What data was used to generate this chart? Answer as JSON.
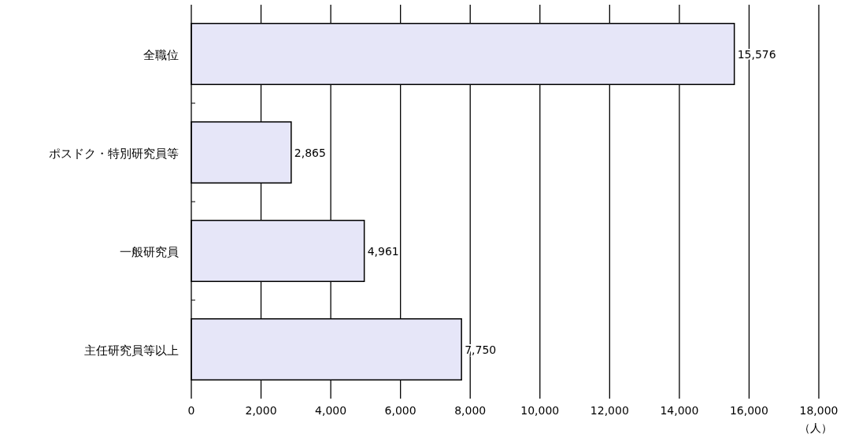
{
  "chart_data": {
    "type": "bar",
    "orientation": "horizontal",
    "categories": [
      "全職位",
      "ポスドク・特別研究員等",
      "一般研究員",
      "主任研究員等以上"
    ],
    "values": [
      15576,
      2865,
      4961,
      7750
    ],
    "value_labels": [
      "15,576",
      "2,865",
      "4,961",
      "7,750"
    ],
    "color": "#e6e6f8",
    "xlim": [
      0,
      18000
    ],
    "xticks": [
      0,
      {
        "value": 2000,
        "label": "2,000"
      },
      {
        "value": 4000,
        "label": "4,000"
      },
      {
        "value": 6000,
        "label": "6,000"
      },
      {
        "value": 8000,
        "label": "8,000"
      },
      {
        "value": 10000,
        "label": "10,000"
      },
      {
        "value": 12000,
        "label": "12,000"
      },
      {
        "value": 14000,
        "label": "14,000"
      },
      {
        "value": 16000,
        "label": "16,000"
      },
      {
        "value": 18000,
        "label": "18,000"
      }
    ],
    "xlabel": "（人）",
    "grid": "x"
  }
}
